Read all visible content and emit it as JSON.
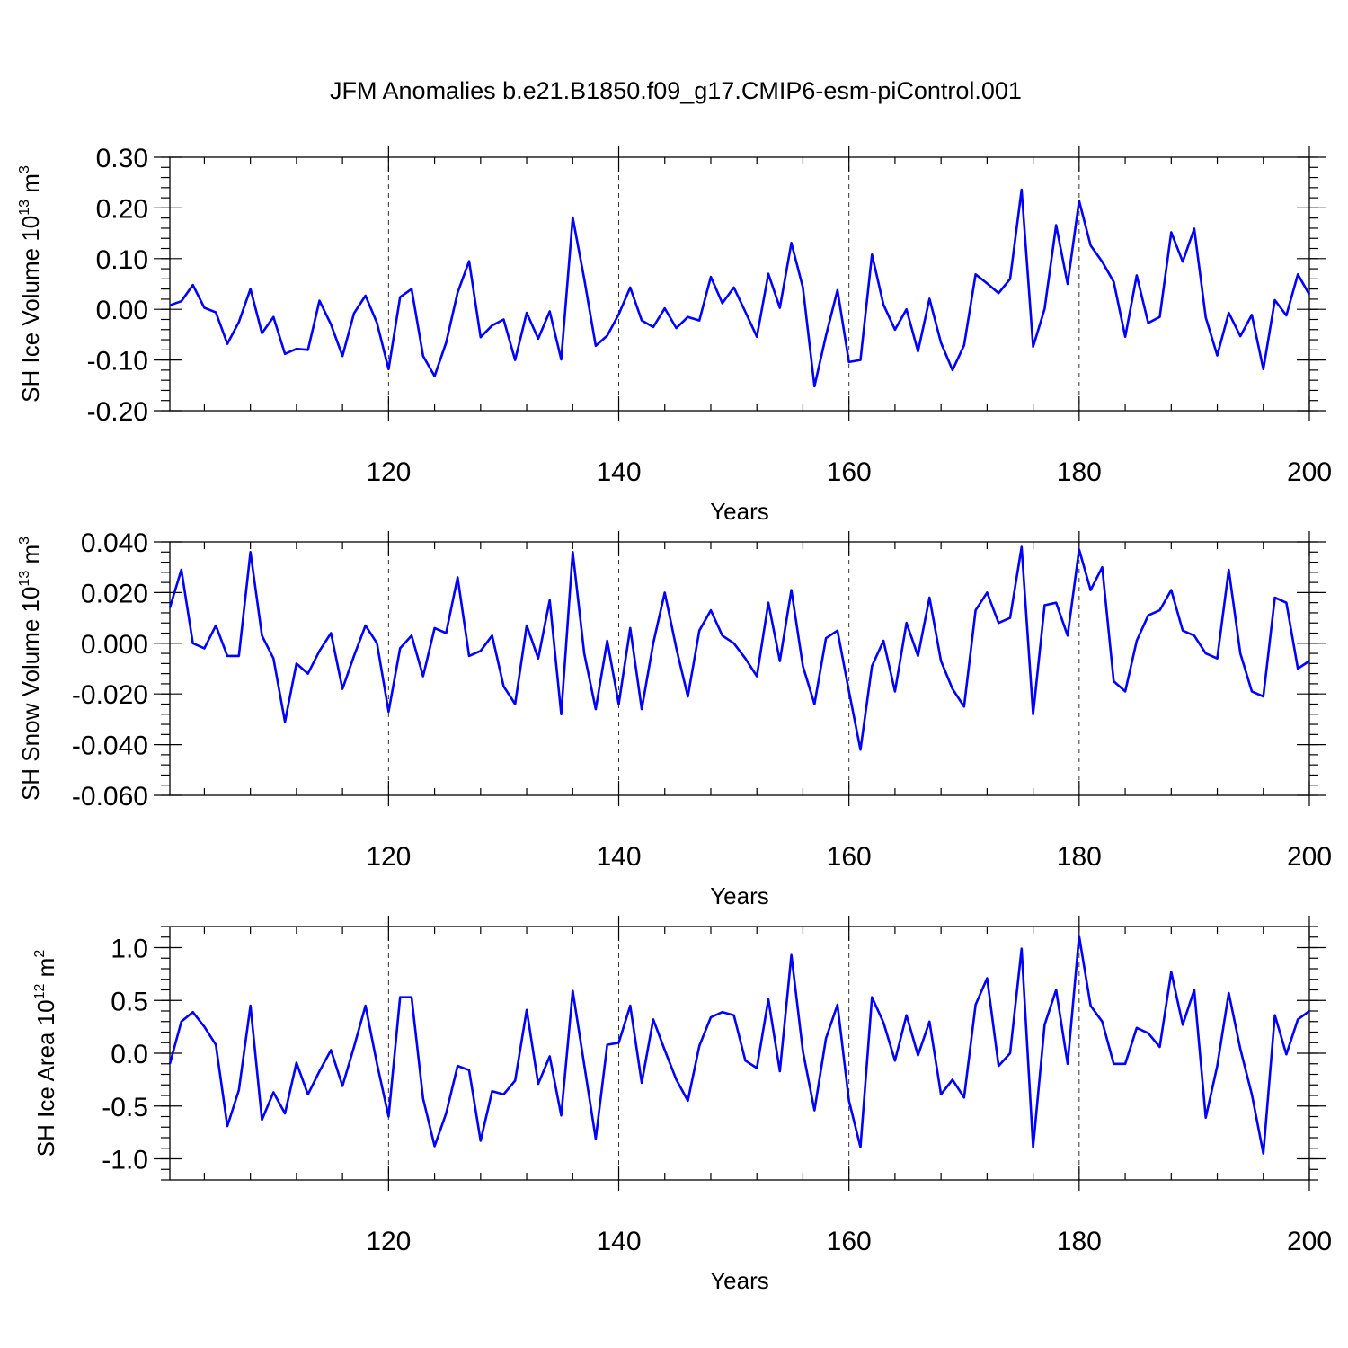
{
  "title": "JFM Anomalies b.e21.B1850.f09_g17.CMIP6-esm-piControl.001",
  "colors": {
    "line": "#0000ff"
  },
  "chart_data": [
    {
      "type": "line",
      "ylabel": "SH Ice Volume 10",
      "ylabel_sup": "13",
      "ylabel_unit": "m",
      "ylabel_unit_sup": "3",
      "xlabel": "Years",
      "xlim": [
        101,
        200
      ],
      "ylim": [
        -0.2,
        0.3
      ],
      "yticks": [
        -0.2,
        -0.1,
        0.0,
        0.1,
        0.2,
        0.3
      ],
      "ytick_labels": [
        "-0.20",
        "-0.10",
        "0.00",
        "0.10",
        "0.20",
        "0.30"
      ],
      "yminor_step": 0.02,
      "xticks": [
        120,
        140,
        160,
        180,
        200
      ],
      "xtick_labels": [
        "120",
        "140",
        "160",
        "180",
        "200"
      ],
      "xminor_step": 4,
      "x_start": 101,
      "values": [
        0.008,
        0.016,
        0.048,
        0.003,
        -0.006,
        -0.068,
        -0.025,
        0.04,
        -0.047,
        -0.015,
        -0.088,
        -0.078,
        -0.08,
        0.017,
        -0.03,
        -0.092,
        -0.008,
        0.027,
        -0.027,
        -0.118,
        0.024,
        0.04,
        -0.092,
        -0.132,
        -0.066,
        0.033,
        0.095,
        -0.055,
        -0.032,
        -0.02,
        -0.1,
        -0.007,
        -0.058,
        -0.004,
        -0.099,
        0.181,
        0.06,
        -0.072,
        -0.052,
        -0.01,
        0.043,
        -0.022,
        -0.035,
        0.002,
        -0.037,
        -0.015,
        -0.022,
        0.064,
        0.012,
        0.043,
        -0.005,
        -0.054,
        0.07,
        0.003,
        0.131,
        0.043,
        -0.152,
        -0.052,
        0.038,
        -0.104,
        -0.1,
        0.108,
        0.009,
        -0.04,
        0.0,
        -0.083,
        0.021,
        -0.066,
        -0.12,
        -0.071,
        0.069,
        0.051,
        0.032,
        0.06,
        0.236,
        -0.074,
        0.001,
        0.166,
        0.05,
        0.214,
        0.126,
        0.094,
        0.054,
        -0.054,
        0.067,
        -0.027,
        -0.015,
        0.152,
        0.094,
        0.159,
        -0.016,
        -0.091,
        -0.007,
        -0.053,
        -0.011,
        -0.118,
        0.018,
        -0.012,
        0.069,
        0.029
      ]
    },
    {
      "type": "line",
      "ylabel": "SH Snow Volume 10",
      "ylabel_sup": "13",
      "ylabel_unit": "m",
      "ylabel_unit_sup": "3",
      "xlabel": "Years",
      "xlim": [
        101,
        200
      ],
      "ylim": [
        -0.06,
        0.04
      ],
      "yticks": [
        -0.06,
        -0.04,
        -0.02,
        0.0,
        0.02,
        0.04
      ],
      "ytick_labels": [
        "-0.060",
        "-0.040",
        "-0.020",
        "0.000",
        "0.020",
        "0.040"
      ],
      "yminor_step": 0.004,
      "xticks": [
        120,
        140,
        160,
        180,
        200
      ],
      "xtick_labels": [
        "120",
        "140",
        "160",
        "180",
        "200"
      ],
      "xminor_step": 4,
      "x_start": 101,
      "values": [
        0.014,
        0.029,
        0.0,
        -0.002,
        0.007,
        -0.005,
        -0.005,
        0.036,
        0.003,
        -0.006,
        -0.031,
        -0.008,
        -0.012,
        -0.003,
        0.004,
        -0.018,
        -0.005,
        0.007,
        0.0,
        -0.027,
        -0.002,
        0.003,
        -0.013,
        0.006,
        0.004,
        0.026,
        -0.005,
        -0.003,
        0.003,
        -0.017,
        -0.024,
        0.007,
        -0.006,
        0.017,
        -0.028,
        0.036,
        -0.004,
        -0.026,
        0.001,
        -0.024,
        0.006,
        -0.026,
        0.0,
        0.02,
        -0.002,
        -0.021,
        0.005,
        0.013,
        0.003,
        0.0,
        -0.006,
        -0.013,
        0.016,
        -0.007,
        0.021,
        -0.009,
        -0.024,
        0.002,
        0.005,
        -0.019,
        -0.042,
        -0.009,
        0.001,
        -0.019,
        0.008,
        -0.005,
        0.018,
        -0.007,
        -0.018,
        -0.025,
        0.013,
        0.02,
        0.008,
        0.01,
        0.038,
        -0.028,
        0.015,
        0.016,
        0.003,
        0.037,
        0.021,
        0.03,
        -0.015,
        -0.019,
        0.001,
        0.011,
        0.013,
        0.021,
        0.005,
        0.003,
        -0.004,
        -0.006,
        0.029,
        -0.004,
        -0.019,
        -0.021,
        0.018,
        0.016,
        -0.01,
        -0.007
      ]
    },
    {
      "type": "line",
      "ylabel": "SH Ice Area 10",
      "ylabel_sup": "12",
      "ylabel_unit": "m",
      "ylabel_unit_sup": "2",
      "xlabel": "Years",
      "xlim": [
        101,
        200
      ],
      "ylim": [
        -1.2,
        1.2
      ],
      "yticks": [
        -1.0,
        -0.5,
        0.0,
        0.5,
        1.0
      ],
      "ytick_labels": [
        "-1.0",
        "-0.5",
        "0.0",
        "0.5",
        "1.0"
      ],
      "yminor_step": 0.1,
      "xticks": [
        120,
        140,
        160,
        180,
        200
      ],
      "xtick_labels": [
        "120",
        "140",
        "160",
        "180",
        "200"
      ],
      "xminor_step": 4,
      "x_start": 101,
      "values": [
        -0.1,
        0.3,
        0.39,
        0.25,
        0.08,
        -0.69,
        -0.35,
        0.45,
        -0.63,
        -0.37,
        -0.57,
        -0.09,
        -0.39,
        -0.17,
        0.03,
        -0.31,
        0.06,
        0.45,
        -0.1,
        -0.6,
        0.53,
        0.53,
        -0.43,
        -0.88,
        -0.57,
        -0.12,
        -0.16,
        -0.83,
        -0.36,
        -0.39,
        -0.26,
        0.41,
        -0.29,
        -0.03,
        -0.59,
        0.59,
        -0.11,
        -0.81,
        0.08,
        0.1,
        0.45,
        -0.28,
        0.32,
        0.03,
        -0.25,
        -0.45,
        0.07,
        0.34,
        0.39,
        0.36,
        -0.07,
        -0.14,
        0.51,
        -0.17,
        0.93,
        0.02,
        -0.54,
        0.14,
        0.46,
        -0.45,
        -0.89,
        0.53,
        0.29,
        -0.07,
        0.36,
        -0.02,
        0.3,
        -0.39,
        -0.25,
        -0.42,
        0.46,
        0.71,
        -0.12,
        0.0,
        0.99,
        -0.89,
        0.27,
        0.6,
        -0.1,
        1.11,
        0.45,
        0.3,
        -0.1,
        -0.1,
        0.24,
        0.19,
        0.06,
        0.77,
        0.27,
        0.6,
        -0.61,
        -0.12,
        0.57,
        0.04,
        -0.39,
        -0.95,
        0.36,
        -0.01,
        0.32,
        0.4
      ]
    }
  ]
}
